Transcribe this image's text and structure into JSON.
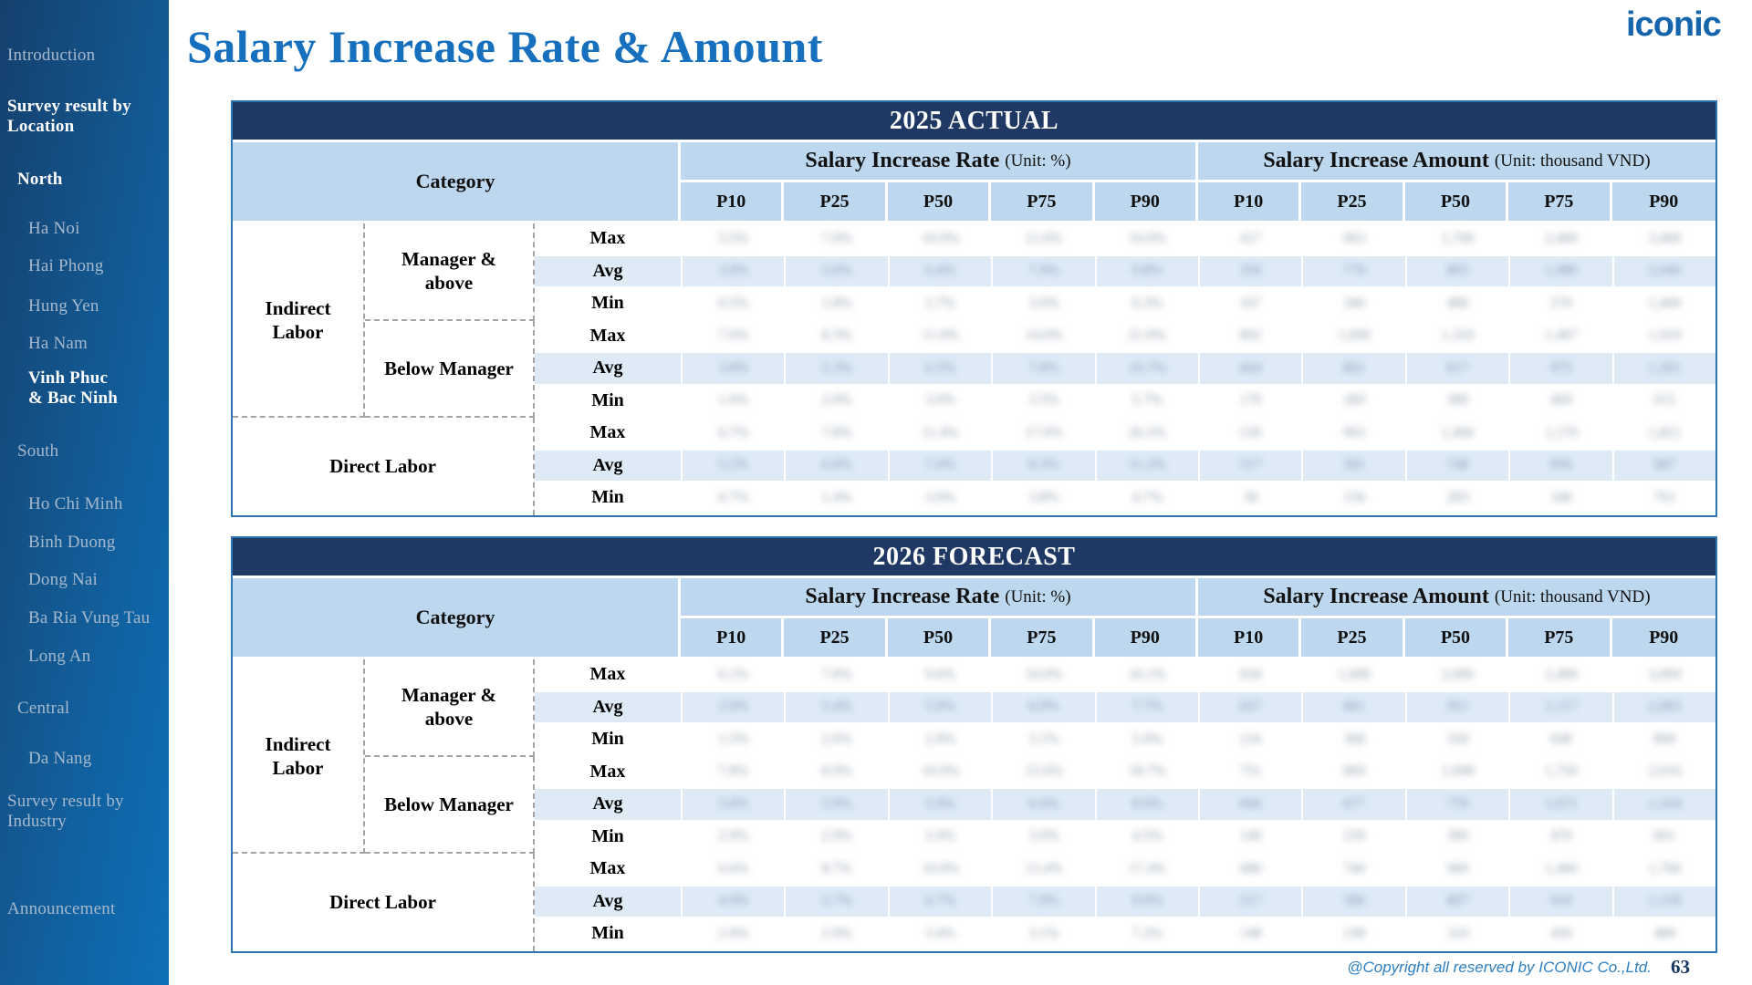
{
  "header": {
    "title": "Salary Increase Rate & Amount",
    "logo_text": "iconic"
  },
  "sidebar": {
    "items": [
      {
        "label": "Introduction",
        "indent": 0,
        "emphasis": "muted"
      },
      {
        "label": "Survey result by\nLocation",
        "indent": 0,
        "emphasis": "bold"
      },
      {
        "label": "North",
        "indent": 1,
        "emphasis": "bold"
      },
      {
        "label": "Ha Noi",
        "indent": 2,
        "emphasis": "muted"
      },
      {
        "label": "Hai Phong",
        "indent": 2,
        "emphasis": "muted"
      },
      {
        "label": "Hung Yen",
        "indent": 2,
        "emphasis": "muted"
      },
      {
        "label": "Ha Nam",
        "indent": 2,
        "emphasis": "muted"
      },
      {
        "label": "Vinh Phuc\n& Bac Ninh",
        "indent": 2,
        "emphasis": "bold"
      },
      {
        "label": "South",
        "indent": 1,
        "emphasis": "muted"
      },
      {
        "label": "Ho Chi Minh",
        "indent": 2,
        "emphasis": "muted"
      },
      {
        "label": "Binh Duong",
        "indent": 2,
        "emphasis": "muted"
      },
      {
        "label": "Dong Nai",
        "indent": 2,
        "emphasis": "muted"
      },
      {
        "label": "Ba Ria Vung Tau",
        "indent": 2,
        "emphasis": "muted"
      },
      {
        "label": "Long An",
        "indent": 2,
        "emphasis": "muted"
      },
      {
        "label": "Central",
        "indent": 1,
        "emphasis": "muted"
      },
      {
        "label": "Da Nang",
        "indent": 2,
        "emphasis": "muted"
      },
      {
        "label": "Survey result by\nIndustry",
        "indent": 0,
        "emphasis": "muted"
      },
      {
        "label": "Announcement",
        "indent": 0,
        "emphasis": "muted"
      }
    ]
  },
  "columns": {
    "category_header": "Category",
    "groups": [
      {
        "label": "Salary Increase Rate",
        "unit": "(Unit: %)"
      },
      {
        "label": "Salary Increase Amount",
        "unit": "(Unit: thousand VND)"
      }
    ],
    "percentiles": [
      "P10",
      "P25",
      "P50",
      "P75",
      "P90"
    ]
  },
  "categories": {
    "indirect": "Indirect\nLabor",
    "manager": "Manager &\nabove",
    "below": "Below Manager",
    "direct": "Direct Labor"
  },
  "data_redacted": true,
  "redaction_note": "All numeric cell values are blurred/illegible in the source screenshot; values below are unreadable placeholders rendered with a blur effect.",
  "tables": [
    {
      "title": "2025 ACTUAL",
      "rows": [
        {
          "stat": "Max",
          "shade": false,
          "values": [
            "5.5%",
            "7.0%",
            "10.0%",
            "11.0%",
            "16.0%",
            "417",
            "963",
            "1,700",
            "2,400",
            "3,400"
          ]
        },
        {
          "stat": "Avg",
          "shade": true,
          "values": [
            "3.8%",
            "5.0%",
            "6.4%",
            "7.9%",
            "9.8%",
            "350",
            "770",
            "865",
            "1,980",
            "2,640"
          ]
        },
        {
          "stat": "Min",
          "shade": false,
          "values": [
            "0.5%",
            "1.8%",
            "2.7%",
            "3.6%",
            "6.3%",
            "167",
            "346",
            "480",
            "570",
            "1,400"
          ]
        },
        {
          "stat": "Max",
          "shade": false,
          "values": [
            "7.0%",
            "8.3%",
            "11.6%",
            "14.0%",
            "21.6%",
            "862",
            "1,000",
            "1,310",
            "1,467",
            "1,910"
          ]
        },
        {
          "stat": "Avg",
          "shade": true,
          "values": [
            "3.8%",
            "5.3%",
            "6.5%",
            "7.8%",
            "10.7%",
            "664",
            "801",
            "817",
            "975",
            "1,301"
          ]
        },
        {
          "stat": "Min",
          "shade": false,
          "values": [
            "1.6%",
            "2.0%",
            "3.0%",
            "3.5%",
            "5.7%",
            "170",
            "260",
            "380",
            "460",
            "615"
          ]
        },
        {
          "stat": "Max",
          "shade": false,
          "values": [
            "6.7%",
            "7.8%",
            "11.4%",
            "17.0%",
            "26.5%",
            "530",
            "963",
            "1,400",
            "1,170",
            "1,821"
          ]
        },
        {
          "stat": "Avg",
          "shade": true,
          "values": [
            "5.2%",
            "6.0%",
            "7.0%",
            "8.3%",
            "11.2%",
            "517",
            "581",
            "748",
            "856",
            "987"
          ]
        },
        {
          "stat": "Min",
          "shade": false,
          "values": [
            "0.7%",
            "1.4%",
            "3.0%",
            "3.8%",
            "4.7%",
            "36",
            "156",
            "283",
            "346",
            "761"
          ]
        }
      ]
    },
    {
      "title": "2026 FORECAST",
      "rows": [
        {
          "stat": "Max",
          "shade": false,
          "values": [
            "6.1%",
            "7.0%",
            "9.6%",
            "10.0%",
            "16.1%",
            "834",
            "1,000",
            "2,000",
            "2,400",
            "3,000"
          ]
        },
        {
          "stat": "Avg",
          "shade": true,
          "values": [
            "3.9%",
            "5.4%",
            "5.9%",
            "6.9%",
            "7.7%",
            "657",
            "861",
            "951",
            "1,117",
            "2,083"
          ]
        },
        {
          "stat": "Min",
          "shade": false,
          "values": [
            "1.5%",
            "2.6%",
            "2.9%",
            "3.1%",
            "5.6%",
            "216",
            "368",
            "550",
            "640",
            "890"
          ]
        },
        {
          "stat": "Max",
          "shade": false,
          "values": [
            "7.8%",
            "8.9%",
            "10.0%",
            "15.6%",
            "18.7%",
            "751",
            "869",
            "1,098",
            "1,750",
            "2,016"
          ]
        },
        {
          "stat": "Avg",
          "shade": true,
          "values": [
            "5.8%",
            "5.9%",
            "5.9%",
            "6.6%",
            "8.9%",
            "660",
            "677",
            "779",
            "1,071",
            "1,104"
          ]
        },
        {
          "stat": "Min",
          "shade": false,
          "values": [
            "2.9%",
            "2.9%",
            "3.4%",
            "3.9%",
            "4.5%",
            "140",
            "239",
            "390",
            "470",
            "601"
          ]
        },
        {
          "stat": "Max",
          "shade": false,
          "values": [
            "6.6%",
            "8.7%",
            "10.9%",
            "13.4%",
            "17.4%",
            "680",
            "740",
            "960",
            "1,460",
            "1,766"
          ]
        },
        {
          "stat": "Avg",
          "shade": true,
          "values": [
            "4.9%",
            "5.7%",
            "6.7%",
            "7.9%",
            "9.9%",
            "517",
            "586",
            "807",
            "910",
            "1,118"
          ]
        },
        {
          "stat": "Min",
          "shade": false,
          "values": [
            "2.9%",
            "2.9%",
            "3.4%",
            "3.1%",
            "7.2%",
            "148",
            "238",
            "310",
            "450",
            "480"
          ]
        }
      ]
    }
  ],
  "footer": {
    "copyright": "@Copyright all reserved by ICONIC Co.,Ltd.",
    "page_number": "63"
  }
}
